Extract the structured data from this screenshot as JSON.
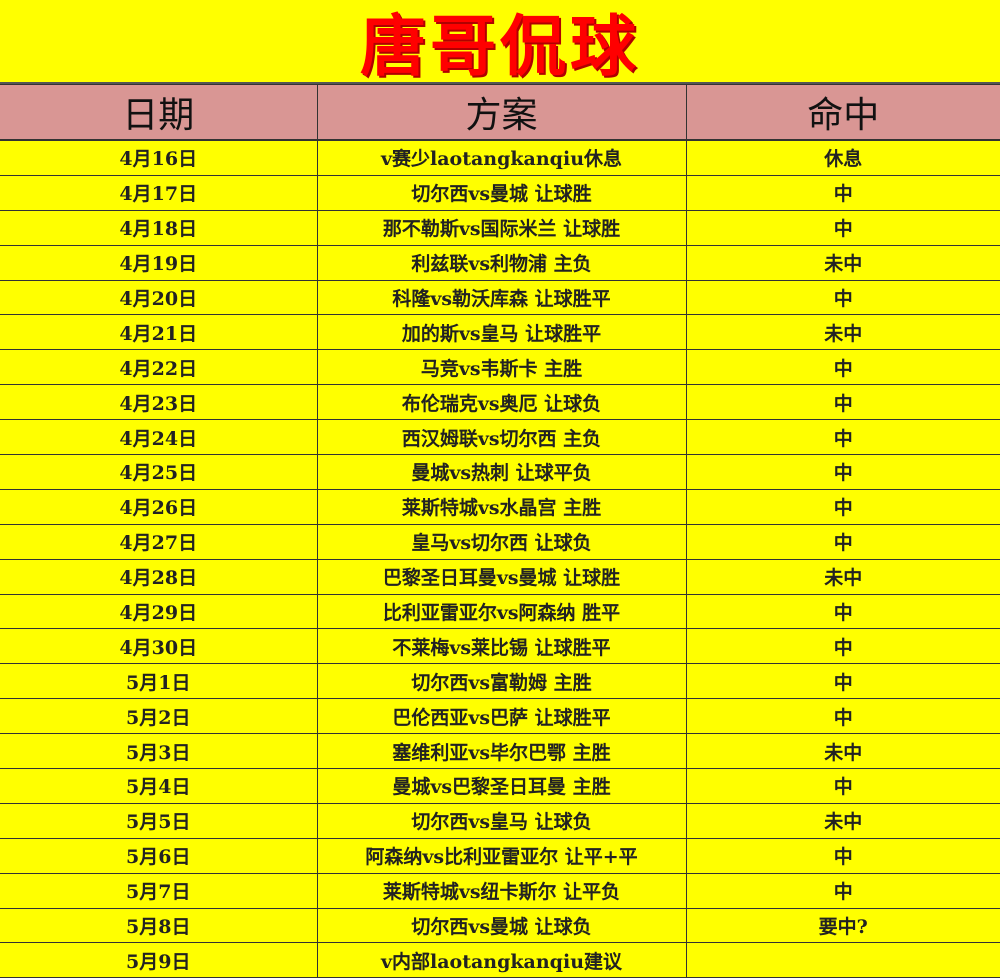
{
  "title": "唐哥侃球",
  "headers": [
    "日期",
    "方案",
    "命中"
  ],
  "rows": [
    [
      "4月16日",
      "v赛少laotangkanqiu休息",
      "休息"
    ],
    [
      "4月17日",
      "切尔西vs曼城 让球胜",
      "中"
    ],
    [
      "4月18日",
      "那不勒斯vs国际米兰 让球胜",
      "中"
    ],
    [
      "4月19日",
      "利兹联vs利物浦 主负",
      "未中"
    ],
    [
      "4月20日",
      "科隆vs勒沃库森 让球胜平",
      "中"
    ],
    [
      "4月21日",
      "加的斯vs皇马 让球胜平",
      "未中"
    ],
    [
      "4月22日",
      "马竞vs韦斯卡 主胜",
      "中"
    ],
    [
      "4月23日",
      "布伦瑞克vs奥厄 让球负",
      "中"
    ],
    [
      "4月24日",
      "西汉姆联vs切尔西 主负",
      "中"
    ],
    [
      "4月25日",
      "曼城vs热刺 让球平负",
      "中"
    ],
    [
      "4月26日",
      "莱斯特城vs水晶宫 主胜",
      "中"
    ],
    [
      "4月27日",
      "皇马vs切尔西 让球负",
      "中"
    ],
    [
      "4月28日",
      "巴黎圣日耳曼vs曼城 让球胜",
      "未中"
    ],
    [
      "4月29日",
      "比利亚雷亚尔vs阿森纳 胜平",
      "中"
    ],
    [
      "4月30日",
      "不莱梅vs莱比锡 让球胜平",
      "中"
    ],
    [
      "5月1日",
      "切尔西vs富勒姆 主胜",
      "中"
    ],
    [
      "5月2日",
      "巴伦西亚vs巴萨 让球胜平",
      "中"
    ],
    [
      "5月3日",
      "塞维利亚vs毕尔巴鄂 主胜",
      "未中"
    ],
    [
      "5月4日",
      "曼城vs巴黎圣日耳曼 主胜",
      "中"
    ],
    [
      "5月5日",
      "切尔西vs皇马 让球负",
      "未中"
    ],
    [
      "5月6日",
      "阿森纳vs比利亚雷亚尔 让平+平",
      "中"
    ],
    [
      "5月7日",
      "莱斯特城vs纽卡斯尔 让平负",
      "中"
    ],
    [
      "5月8日",
      "切尔西vs曼城 让球负",
      "要中?"
    ],
    [
      "5月9日",
      "v内部laotangkanqiu建议",
      ""
    ]
  ]
}
